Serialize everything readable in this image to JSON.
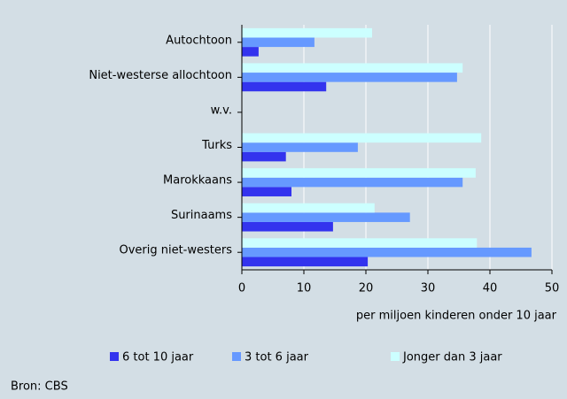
{
  "chart_data": {
    "type": "hbar",
    "categories": [
      "Autochtoon",
      "Niet-westerse allochtoon",
      "w.v.",
      "Turks",
      "Marokkaans",
      "Surinaams",
      "Overig niet-westers"
    ],
    "series": [
      {
        "name": "6 tot 10 jaar",
        "color": "#3333ee",
        "values": [
          2.7,
          13.6,
          null,
          7.1,
          8.0,
          14.7,
          20.3
        ]
      },
      {
        "name": "3 tot 6 jaar",
        "color": "#6699ff",
        "values": [
          11.7,
          34.7,
          null,
          18.7,
          35.6,
          27.1,
          46.7
        ]
      },
      {
        "name": "Jonger dan 3 jaar",
        "color": "#ccffff",
        "values": [
          21.0,
          35.6,
          null,
          38.6,
          37.7,
          21.4,
          37.9
        ]
      }
    ],
    "xlim": [
      0,
      50
    ],
    "xticks": [
      0,
      10,
      20,
      30,
      40,
      50
    ],
    "grid": true,
    "xlabel": "per miljoen kinderen onder 10 jaar",
    "legend": "bottom",
    "source": "Bron: CBS"
  }
}
